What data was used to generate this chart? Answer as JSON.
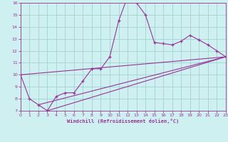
{
  "xlabel": "Windchill (Refroidissement éolien,°C)",
  "xlim": [
    0,
    23
  ],
  "ylim": [
    7,
    16
  ],
  "xticks": [
    0,
    1,
    2,
    3,
    4,
    5,
    6,
    7,
    8,
    9,
    10,
    11,
    12,
    13,
    14,
    15,
    16,
    17,
    18,
    19,
    20,
    21,
    22,
    23
  ],
  "yticks": [
    7,
    8,
    9,
    10,
    11,
    12,
    13,
    14,
    15,
    16
  ],
  "background_color": "#cff0f0",
  "line_color": "#993399",
  "grid_color": "#99cccc",
  "series": [
    [
      0,
      10
    ],
    [
      1,
      8.0
    ],
    [
      2,
      7.5
    ],
    [
      3,
      7.0
    ],
    [
      4,
      8.2
    ],
    [
      5,
      8.5
    ],
    [
      6,
      8.5
    ],
    [
      7,
      9.5
    ],
    [
      8,
      10.5
    ],
    [
      9,
      10.5
    ],
    [
      10,
      11.5
    ],
    [
      11,
      14.5
    ],
    [
      12,
      16.5
    ],
    [
      13,
      16.0
    ],
    [
      14,
      15.0
    ],
    [
      15,
      12.7
    ],
    [
      16,
      12.6
    ],
    [
      17,
      12.5
    ],
    [
      18,
      12.8
    ],
    [
      19,
      13.3
    ],
    [
      20,
      12.9
    ],
    [
      21,
      12.5
    ],
    [
      22,
      12.0
    ],
    [
      23,
      11.5
    ]
  ],
  "line2": [
    [
      0,
      10.0
    ],
    [
      23,
      11.5
    ]
  ],
  "line3": [
    [
      2,
      7.5
    ],
    [
      23,
      11.5
    ]
  ],
  "line4": [
    [
      3,
      7.0
    ],
    [
      23,
      11.5
    ]
  ]
}
